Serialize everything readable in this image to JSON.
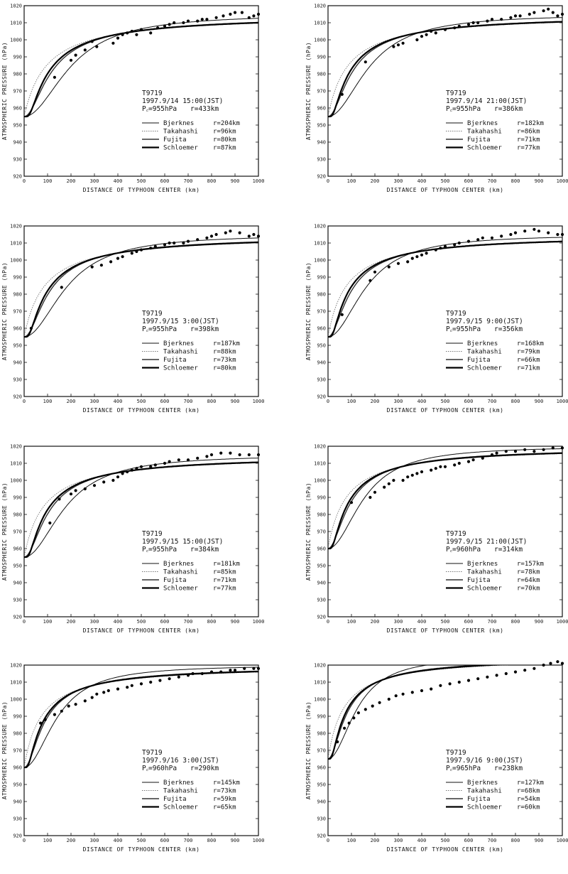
{
  "chart_data": [
    {
      "type": "line",
      "typhoon": "T9719",
      "time": "1997.9/14 15:00(JST)",
      "pc_label": "P꜀=955hPa",
      "rm_label": "r=433km",
      "pc": 955,
      "rm": 433,
      "xlabel": "DISTANCE OF TYPHOON CENTER  (km)",
      "ylabel": "ATMOSPHERIC PRESSURE  (hPa)",
      "xlim": [
        0,
        1000
      ],
      "ylim": [
        920,
        1020
      ],
      "series": [
        {
          "name": "Bjerknes",
          "r": "r=204km",
          "r0": 204,
          "style": "thin"
        },
        {
          "name": "Takahashi",
          "r": "r=96km",
          "r0": 96,
          "style": "dotted"
        },
        {
          "name": "Fujita",
          "r": "r=80km",
          "r0": 80,
          "style": "medium"
        },
        {
          "name": "Schloemer",
          "r": "r=87km",
          "r0": 87,
          "style": "thick"
        }
      ],
      "points": [
        [
          130,
          978
        ],
        [
          200,
          988
        ],
        [
          220,
          991
        ],
        [
          260,
          994
        ],
        [
          290,
          999
        ],
        [
          310,
          996
        ],
        [
          380,
          998
        ],
        [
          400,
          1001
        ],
        [
          420,
          1003
        ],
        [
          440,
          1004
        ],
        [
          460,
          1005
        ],
        [
          480,
          1003
        ],
        [
          500,
          1006
        ],
        [
          540,
          1004
        ],
        [
          570,
          1007
        ],
        [
          600,
          1008
        ],
        [
          620,
          1009
        ],
        [
          640,
          1010
        ],
        [
          680,
          1010
        ],
        [
          700,
          1011
        ],
        [
          740,
          1011
        ],
        [
          760,
          1012
        ],
        [
          780,
          1012
        ],
        [
          820,
          1013
        ],
        [
          850,
          1014
        ],
        [
          880,
          1015
        ],
        [
          900,
          1016
        ],
        [
          930,
          1016
        ],
        [
          960,
          1013
        ],
        [
          980,
          1014
        ],
        [
          1000,
          1015
        ]
      ]
    },
    {
      "type": "line",
      "typhoon": "T9719",
      "time": "1997.9/14 21:00(JST)",
      "pc_label": "P꜀=955hPa",
      "rm_label": "r=386km",
      "pc": 955,
      "rm": 386,
      "xlabel": "DISTANCE OF TYPHOON CENTER  (km)",
      "ylabel": "ATMOSPHERIC PRESSURE  (hPa)",
      "xlim": [
        0,
        1000
      ],
      "ylim": [
        920,
        1020
      ],
      "series": [
        {
          "name": "Bjerknes",
          "r": "r=182km",
          "r0": 182,
          "style": "thin"
        },
        {
          "name": "Takahashi",
          "r": "r=86km",
          "r0": 86,
          "style": "dotted"
        },
        {
          "name": "Fujita",
          "r": "r=71km",
          "r0": 71,
          "style": "medium"
        },
        {
          "name": "Schloemer",
          "r": "r=77km",
          "r0": 77,
          "style": "thick"
        }
      ],
      "points": [
        [
          60,
          968
        ],
        [
          160,
          987
        ],
        [
          280,
          996
        ],
        [
          300,
          997
        ],
        [
          320,
          998
        ],
        [
          380,
          1000
        ],
        [
          400,
          1002
        ],
        [
          420,
          1003
        ],
        [
          440,
          1005
        ],
        [
          460,
          1004
        ],
        [
          500,
          1006
        ],
        [
          540,
          1007
        ],
        [
          560,
          1008
        ],
        [
          600,
          1009
        ],
        [
          620,
          1010
        ],
        [
          640,
          1010
        ],
        [
          680,
          1011
        ],
        [
          700,
          1012
        ],
        [
          740,
          1012
        ],
        [
          780,
          1013
        ],
        [
          800,
          1014
        ],
        [
          820,
          1014
        ],
        [
          860,
          1015
        ],
        [
          880,
          1016
        ],
        [
          920,
          1017
        ],
        [
          940,
          1018
        ],
        [
          960,
          1016
        ],
        [
          980,
          1014
        ],
        [
          1000,
          1015
        ]
      ]
    },
    {
      "type": "line",
      "typhoon": "T9719",
      "time": "1997.9/15 3:00(JST)",
      "pc_label": "P꜀=955hPa",
      "rm_label": "r=398km",
      "pc": 955,
      "rm": 398,
      "xlabel": "DISTANCE OF TYPHOON CENTER  (km)",
      "ylabel": "ATMOSPHERIC PRESSURE  (hPa)",
      "xlim": [
        0,
        1000
      ],
      "ylim": [
        920,
        1020
      ],
      "series": [
        {
          "name": "Bjerknes",
          "r": "r=187km",
          "r0": 187,
          "style": "thin"
        },
        {
          "name": "Takahashi",
          "r": "r=88km",
          "r0": 88,
          "style": "dotted"
        },
        {
          "name": "Fujita",
          "r": "r=73km",
          "r0": 73,
          "style": "medium"
        },
        {
          "name": "Schloemer",
          "r": "r=80km",
          "r0": 80,
          "style": "thick"
        }
      ],
      "points": [
        [
          30,
          960
        ],
        [
          160,
          984
        ],
        [
          290,
          996
        ],
        [
          330,
          997
        ],
        [
          370,
          999
        ],
        [
          400,
          1001
        ],
        [
          420,
          1002
        ],
        [
          460,
          1004
        ],
        [
          480,
          1005
        ],
        [
          500,
          1006
        ],
        [
          540,
          1007
        ],
        [
          560,
          1008
        ],
        [
          600,
          1009
        ],
        [
          620,
          1010
        ],
        [
          640,
          1010
        ],
        [
          680,
          1010
        ],
        [
          700,
          1011
        ],
        [
          740,
          1012
        ],
        [
          780,
          1013
        ],
        [
          800,
          1014
        ],
        [
          820,
          1015
        ],
        [
          860,
          1016
        ],
        [
          880,
          1017
        ],
        [
          920,
          1016
        ],
        [
          960,
          1014
        ],
        [
          980,
          1015
        ],
        [
          1000,
          1014
        ]
      ]
    },
    {
      "type": "line",
      "typhoon": "T9719",
      "time": "1997.9/15 9:00(JST)",
      "pc_label": "P꜀=955hPa",
      "rm_label": "r=356km",
      "pc": 955,
      "rm": 356,
      "xlabel": "DISTANCE OF TYPHOON CENTER  (km)",
      "ylabel": "ATMOSPHERIC PRESSURE  (hPa)",
      "xlim": [
        0,
        1000
      ],
      "ylim": [
        920,
        1020
      ],
      "series": [
        {
          "name": "Bjerknes",
          "r": "r=168km",
          "r0": 168,
          "style": "thin"
        },
        {
          "name": "Takahashi",
          "r": "r=79km",
          "r0": 79,
          "style": "dotted"
        },
        {
          "name": "Fujita",
          "r": "r=66km",
          "r0": 66,
          "style": "medium"
        },
        {
          "name": "Schloemer",
          "r": "r=71km",
          "r0": 71,
          "style": "thick"
        }
      ],
      "points": [
        [
          60,
          968
        ],
        [
          180,
          988
        ],
        [
          200,
          993
        ],
        [
          260,
          996
        ],
        [
          300,
          998
        ],
        [
          340,
          999
        ],
        [
          360,
          1001
        ],
        [
          380,
          1002
        ],
        [
          400,
          1003
        ],
        [
          420,
          1004
        ],
        [
          460,
          1006
        ],
        [
          480,
          1007
        ],
        [
          500,
          1008
        ],
        [
          540,
          1009
        ],
        [
          560,
          1010
        ],
        [
          600,
          1011
        ],
        [
          640,
          1012
        ],
        [
          660,
          1013
        ],
        [
          700,
          1013
        ],
        [
          740,
          1014
        ],
        [
          780,
          1015
        ],
        [
          800,
          1016
        ],
        [
          840,
          1017
        ],
        [
          880,
          1018
        ],
        [
          900,
          1017
        ],
        [
          940,
          1016
        ],
        [
          980,
          1015
        ],
        [
          1000,
          1015
        ]
      ]
    },
    {
      "type": "line",
      "typhoon": "T9719",
      "time": "1997.9/15 15:00(JST)",
      "pc_label": "P꜀=955hPa",
      "rm_label": "r=384km",
      "pc": 955,
      "rm": 384,
      "xlabel": "DISTANCE OF TYPHOON CENTER  (km)",
      "ylabel": "ATMOSPHERIC PRESSURE  (hPa)",
      "xlim": [
        0,
        1000
      ],
      "ylim": [
        920,
        1020
      ],
      "series": [
        {
          "name": "Bjerknes",
          "r": "r=181km",
          "r0": 181,
          "style": "thin"
        },
        {
          "name": "Takahashi",
          "r": "r=85km",
          "r0": 85,
          "style": "dotted"
        },
        {
          "name": "Fujita",
          "r": "r=71km",
          "r0": 71,
          "style": "medium"
        },
        {
          "name": "Schloemer",
          "r": "r=77km",
          "r0": 77,
          "style": "thick"
        }
      ],
      "points": [
        [
          110,
          975
        ],
        [
          150,
          989
        ],
        [
          200,
          992
        ],
        [
          220,
          994
        ],
        [
          260,
          995
        ],
        [
          300,
          997
        ],
        [
          340,
          999
        ],
        [
          380,
          1000
        ],
        [
          400,
          1002
        ],
        [
          420,
          1004
        ],
        [
          440,
          1005
        ],
        [
          460,
          1006
        ],
        [
          480,
          1007
        ],
        [
          500,
          1008
        ],
        [
          540,
          1008
        ],
        [
          560,
          1009
        ],
        [
          600,
          1010
        ],
        [
          620,
          1011
        ],
        [
          660,
          1012
        ],
        [
          700,
          1012
        ],
        [
          740,
          1013
        ],
        [
          780,
          1014
        ],
        [
          800,
          1015
        ],
        [
          840,
          1016
        ],
        [
          880,
          1016
        ],
        [
          920,
          1015
        ],
        [
          960,
          1015
        ],
        [
          1000,
          1015
        ]
      ]
    },
    {
      "type": "line",
      "typhoon": "T9719",
      "time": "1997.9/15 21:00(JST)",
      "pc_label": "P꜀=960hPa",
      "rm_label": "r=314km",
      "pc": 960,
      "rm": 314,
      "xlabel": "DISTANCE OF TYPHOON CENTER  (km)",
      "ylabel": "ATMOSPHERIC PRESSURE  (hPa)",
      "xlim": [
        0,
        1000
      ],
      "ylim": [
        920,
        1020
      ],
      "series": [
        {
          "name": "Bjerknes",
          "r": "r=157km",
          "r0": 157,
          "style": "thin"
        },
        {
          "name": "Takahashi",
          "r": "r=78km",
          "r0": 78,
          "style": "dotted"
        },
        {
          "name": "Fujita",
          "r": "r=64km",
          "r0": 64,
          "style": "medium"
        },
        {
          "name": "Schloemer",
          "r": "r=70km",
          "r0": 70,
          "style": "thick"
        }
      ],
      "points": [
        [
          100,
          987
        ],
        [
          180,
          990
        ],
        [
          200,
          993
        ],
        [
          240,
          996
        ],
        [
          260,
          998
        ],
        [
          280,
          1000
        ],
        [
          320,
          1000
        ],
        [
          340,
          1002
        ],
        [
          360,
          1003
        ],
        [
          380,
          1004
        ],
        [
          400,
          1005
        ],
        [
          440,
          1006
        ],
        [
          460,
          1007
        ],
        [
          480,
          1008
        ],
        [
          500,
          1008
        ],
        [
          540,
          1009
        ],
        [
          560,
          1010
        ],
        [
          600,
          1011
        ],
        [
          620,
          1012
        ],
        [
          660,
          1013
        ],
        [
          700,
          1015
        ],
        [
          720,
          1016
        ],
        [
          760,
          1017
        ],
        [
          800,
          1017
        ],
        [
          840,
          1018
        ],
        [
          880,
          1017
        ],
        [
          920,
          1018
        ],
        [
          960,
          1019
        ],
        [
          1000,
          1019
        ]
      ]
    },
    {
      "type": "line",
      "typhoon": "T9719",
      "time": "1997.9/16 3:00(JST)",
      "pc_label": "P꜀=960hPa",
      "rm_label": "r=290km",
      "pc": 960,
      "rm": 290,
      "xlabel": "DISTANCE OF TYPHOON CENTER  (km)",
      "ylabel": "ATMOSPHERIC PRESSURE  (hPa)",
      "xlim": [
        0,
        1000
      ],
      "ylim": [
        920,
        1020
      ],
      "series": [
        {
          "name": "Bjerknes",
          "r": "r=145km",
          "r0": 145,
          "style": "thin"
        },
        {
          "name": "Takahashi",
          "r": "r=73km",
          "r0": 73,
          "style": "dotted"
        },
        {
          "name": "Fujita",
          "r": "r=59km",
          "r0": 59,
          "style": "medium"
        },
        {
          "name": "Schloemer",
          "r": "r=65km",
          "r0": 65,
          "style": "thick"
        }
      ],
      "points": [
        [
          70,
          986
        ],
        [
          90,
          988
        ],
        [
          130,
          991
        ],
        [
          160,
          993
        ],
        [
          190,
          996
        ],
        [
          220,
          997
        ],
        [
          260,
          999
        ],
        [
          290,
          1001
        ],
        [
          310,
          1003
        ],
        [
          340,
          1004
        ],
        [
          360,
          1005
        ],
        [
          400,
          1006
        ],
        [
          440,
          1007
        ],
        [
          460,
          1008
        ],
        [
          500,
          1009
        ],
        [
          540,
          1010
        ],
        [
          580,
          1011
        ],
        [
          620,
          1012
        ],
        [
          660,
          1013
        ],
        [
          700,
          1014
        ],
        [
          720,
          1015
        ],
        [
          760,
          1015
        ],
        [
          800,
          1016
        ],
        [
          840,
          1016
        ],
        [
          880,
          1017
        ],
        [
          900,
          1017
        ],
        [
          940,
          1018
        ],
        [
          980,
          1018
        ],
        [
          1000,
          1018
        ]
      ]
    },
    {
      "type": "line",
      "typhoon": "T9719",
      "time": "1997.9/16 9:00(JST)",
      "pc_label": "P꜀=965hPa",
      "rm_label": "r=238km",
      "pc": 965,
      "rm": 238,
      "xlabel": "DISTANCE OF TYPHOON CENTER  (km)",
      "ylabel": "ATMOSPHERIC PRESSURE  (hPa)",
      "xlim": [
        0,
        1000
      ],
      "ylim": [
        920,
        1020
      ],
      "series": [
        {
          "name": "Bjerknes",
          "r": "r=127km",
          "r0": 127,
          "style": "thin"
        },
        {
          "name": "Takahashi",
          "r": "r=68km",
          "r0": 68,
          "style": "dotted"
        },
        {
          "name": "Fujita",
          "r": "r=54km",
          "r0": 54,
          "style": "medium"
        },
        {
          "name": "Schloemer",
          "r": "r=60km",
          "r0": 60,
          "style": "thick"
        }
      ],
      "points": [
        [
          40,
          975
        ],
        [
          70,
          983
        ],
        [
          90,
          986
        ],
        [
          110,
          989
        ],
        [
          130,
          992
        ],
        [
          160,
          994
        ],
        [
          190,
          996
        ],
        [
          220,
          998
        ],
        [
          260,
          1000
        ],
        [
          290,
          1002
        ],
        [
          320,
          1003
        ],
        [
          360,
          1004
        ],
        [
          400,
          1005
        ],
        [
          440,
          1006
        ],
        [
          480,
          1008
        ],
        [
          520,
          1009
        ],
        [
          560,
          1010
        ],
        [
          600,
          1011
        ],
        [
          640,
          1012
        ],
        [
          680,
          1013
        ],
        [
          720,
          1014
        ],
        [
          760,
          1015
        ],
        [
          800,
          1016
        ],
        [
          840,
          1017
        ],
        [
          880,
          1018
        ],
        [
          920,
          1020
        ],
        [
          950,
          1021
        ],
        [
          980,
          1022
        ],
        [
          1000,
          1021
        ]
      ]
    }
  ]
}
